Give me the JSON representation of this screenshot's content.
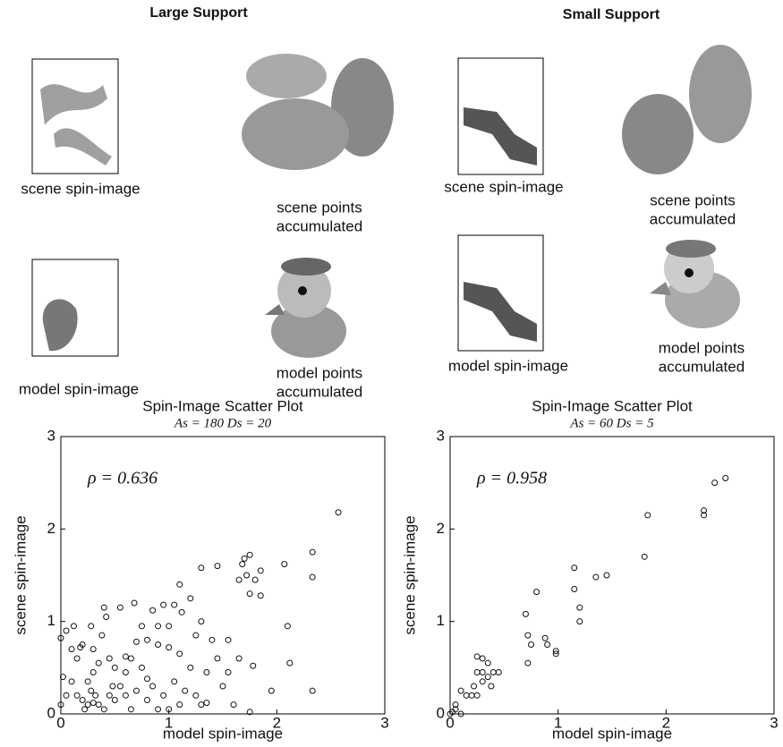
{
  "panels": [
    {
      "heading": "Large Support",
      "scene_label": "scene spin-image",
      "scene_points": [
        "scene points",
        "accumulated"
      ],
      "model_label": "model spin-image",
      "model_points": [
        "model points",
        "accumulated"
      ]
    },
    {
      "heading": "Small Support",
      "scene_label": "scene spin-image",
      "scene_points": [
        "scene points",
        "accumulated"
      ],
      "model_label": "model spin-image",
      "model_points": [
        "model points",
        "accumulated"
      ]
    }
  ],
  "chart_data": [
    {
      "type": "scatter",
      "title": "Spin-Image Scatter Plot",
      "subtitle": "As = 180 Ds = 20",
      "annotation": "ρ = 0.636",
      "x_label": "model spin-image",
      "y_label": "scene spin-image",
      "xlim": [
        0,
        3
      ],
      "ylim": [
        0,
        3
      ],
      "xticks": [
        0,
        1,
        2,
        3
      ],
      "yticks": [
        0,
        1,
        2,
        3
      ],
      "color": "#111111",
      "x": [
        2.57,
        2.33,
        2.33,
        2.07,
        1.75,
        1.7,
        1.68,
        1.72,
        1.8,
        1.85,
        1.65,
        1.75,
        1.85,
        1.45,
        1.3,
        1.2,
        1.1,
        1.05,
        0.95,
        0.85,
        0.68,
        0.55,
        0.4,
        0.42,
        0.12,
        0.05,
        0.0,
        0.28,
        0.2,
        0.18,
        0.15,
        0.1,
        0.9,
        1.0,
        1.12,
        1.3,
        1.25,
        1.4,
        1.55,
        1.45,
        1.65,
        1.55,
        1.35,
        1.2,
        1.1,
        1.0,
        0.9,
        0.8,
        0.7,
        0.65,
        0.75,
        0.6,
        0.55,
        0.5,
        0.45,
        0.35,
        0.3,
        0.25,
        0.28,
        0.32,
        0.3,
        0.25,
        0.2,
        0.35,
        0.4,
        0.22,
        0.15,
        0.1,
        0.05,
        0.02,
        0.0,
        0.45,
        0.5,
        0.6,
        0.7,
        0.85,
        0.95,
        1.05,
        1.15,
        1.25,
        1.3,
        1.35,
        1.5,
        1.6,
        1.75,
        1.78,
        1.95,
        2.12,
        2.1,
        2.33,
        0.8,
        0.9,
        0.65,
        1.0,
        1.1,
        0.38,
        0.48,
        0.3,
        0.6,
        0.75,
        0.8
      ],
      "values": [
        2.18,
        1.75,
        1.48,
        1.62,
        1.72,
        1.68,
        1.62,
        1.5,
        1.45,
        1.55,
        1.45,
        1.3,
        1.28,
        1.6,
        1.58,
        1.25,
        1.4,
        1.18,
        1.18,
        1.12,
        1.2,
        1.15,
        1.15,
        1.05,
        0.95,
        0.9,
        0.82,
        0.95,
        0.75,
        0.72,
        0.6,
        0.7,
        0.95,
        0.95,
        1.1,
        1.0,
        0.85,
        0.8,
        0.8,
        0.6,
        0.6,
        0.45,
        0.45,
        0.5,
        0.65,
        0.72,
        0.75,
        0.8,
        0.78,
        0.6,
        0.5,
        0.45,
        0.3,
        0.5,
        0.6,
        0.55,
        0.45,
        0.35,
        0.25,
        0.2,
        0.12,
        0.1,
        0.15,
        0.1,
        0.05,
        0.05,
        0.2,
        0.35,
        0.2,
        0.4,
        0.1,
        0.2,
        0.15,
        0.2,
        0.25,
        0.3,
        0.2,
        0.35,
        0.25,
        0.2,
        0.1,
        0.12,
        0.3,
        0.1,
        0.02,
        0.52,
        0.25,
        0.55,
        0.95,
        0.25,
        0.15,
        0.05,
        0.05,
        0.05,
        0.1,
        0.85,
        0.3,
        0.7,
        0.62,
        0.95,
        0.38
      ]
    },
    {
      "type": "scatter",
      "title": "Spin-Image Scatter Plot",
      "subtitle": "As = 60 Ds = 5",
      "annotation": "ρ = 0.958",
      "x_label": "model spin-image",
      "y_label": "scene spin-image",
      "xlim": [
        0,
        3
      ],
      "ylim": [
        0,
        3
      ],
      "xticks": [
        0,
        1,
        2,
        3
      ],
      "yticks": [
        0,
        1,
        2,
        3
      ],
      "color": "#111111",
      "x": [
        2.55,
        2.45,
        2.35,
        2.35,
        1.83,
        1.8,
        1.45,
        1.35,
        1.15,
        1.15,
        1.2,
        1.2,
        0.8,
        0.7,
        0.72,
        0.75,
        0.72,
        0.88,
        0.9,
        0.98,
        0.98,
        0.35,
        0.3,
        0.25,
        0.4,
        0.45,
        0.35,
        0.3,
        0.22,
        0.25,
        0.2,
        0.15,
        0.25,
        0.1,
        0.38,
        0.3,
        0.05,
        0.05,
        0.02,
        0.1,
        0.0
      ],
      "values": [
        2.55,
        2.5,
        2.2,
        2.15,
        2.15,
        1.7,
        1.5,
        1.48,
        1.58,
        1.35,
        1.15,
        1.0,
        1.32,
        1.08,
        0.85,
        0.75,
        0.55,
        0.82,
        0.75,
        0.68,
        0.65,
        0.55,
        0.6,
        0.62,
        0.45,
        0.45,
        0.4,
        0.35,
        0.3,
        0.45,
        0.2,
        0.2,
        0.2,
        0.25,
        0.3,
        0.45,
        0.1,
        0.05,
        0.02,
        0.0,
        0.0
      ]
    }
  ]
}
